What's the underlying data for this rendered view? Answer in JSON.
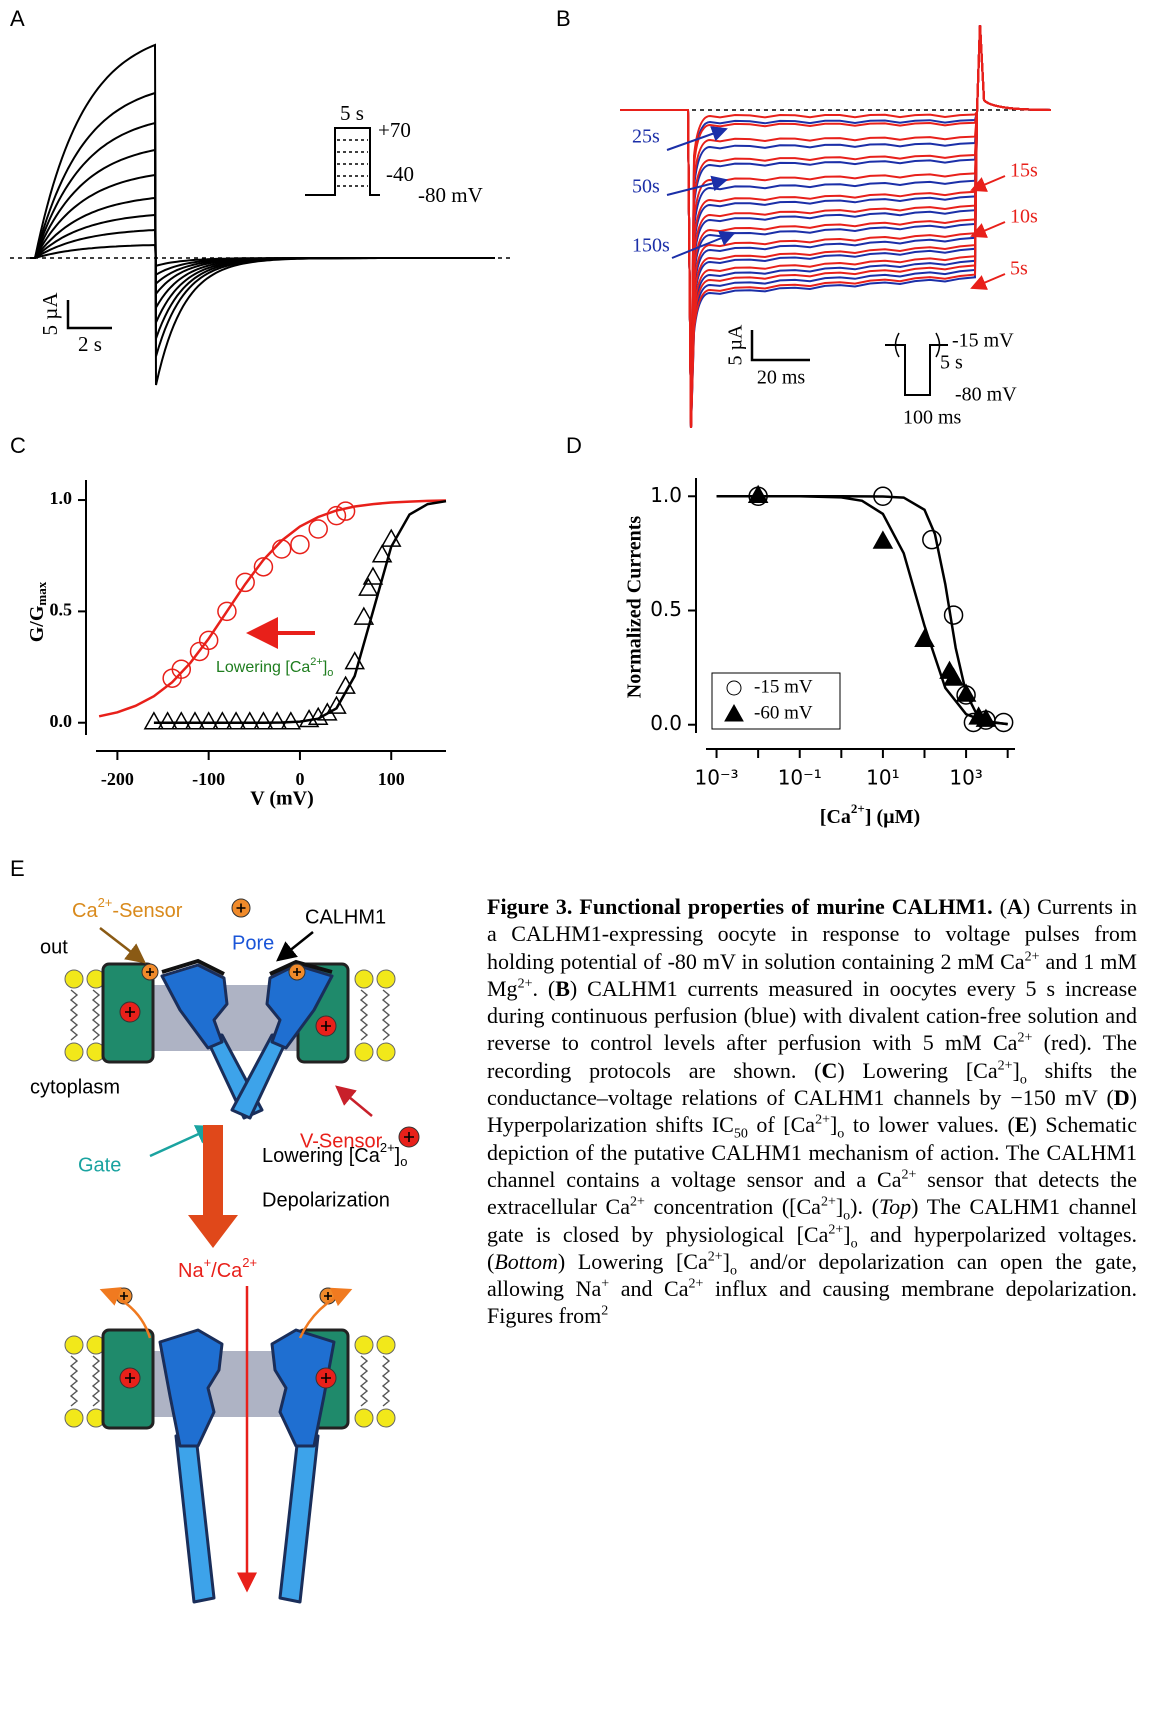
{
  "panel_labels": [
    "A",
    "B",
    "C",
    "D",
    "E"
  ],
  "panel_a": {
    "protocol": {
      "duration": "5 s",
      "top": "+70",
      "bottom": "-40",
      "holding": "-80 mV"
    },
    "scale": {
      "current": "5 µA",
      "time": "2 s"
    }
  },
  "panel_b": {
    "blue_labels": [
      "25s",
      "50s",
      "150s"
    ],
    "red_labels": [
      "15s",
      "10s",
      "5s"
    ],
    "scale": {
      "current": "5 µA",
      "time": "20 ms"
    },
    "protocol": {
      "test": "-15 mV",
      "interval": "5 s",
      "holding": "-80 mV",
      "duration": "100 ms"
    }
  },
  "chart_data": [
    {
      "type": "scatter",
      "x_label": "V (mV)",
      "y_label": "G/G",
      "y_label_sub": "max",
      "xlim": [
        -230,
        160
      ],
      "ylim": [
        -0.1,
        1.09
      ],
      "xticks": [
        -200,
        -100,
        0,
        100
      ],
      "yticks": [
        {
          "value": 0,
          "label": "0.0"
        },
        {
          "value": 0.5,
          "label": "0.5"
        },
        {
          "value": 1,
          "label": "1.0"
        }
      ],
      "series": [
        {
          "color": "#e8201a",
          "marker": "open-circle",
          "x": [
            -140,
            -130,
            -110,
            -100,
            -80,
            -60,
            -40,
            -20,
            0,
            20,
            40,
            50
          ],
          "values": [
            0.2,
            0.24,
            0.32,
            0.37,
            0.5,
            0.63,
            0.7,
            0.78,
            0.8,
            0.87,
            0.93,
            0.95
          ]
        },
        {
          "color": "#000000",
          "marker": "open-triangle",
          "x": [
            -160,
            -145,
            -130,
            -115,
            -100,
            -85,
            -70,
            -55,
            -40,
            -25,
            -10,
            10,
            20,
            30,
            40,
            50,
            60,
            70,
            75,
            80,
            90,
            100
          ],
          "values": [
            0,
            0,
            0,
            0,
            0,
            0,
            0,
            0,
            0,
            0,
            0,
            0.01,
            0.02,
            0.04,
            0.07,
            0.16,
            0.27,
            0.47,
            0.6,
            0.65,
            0.75,
            0.82
          ]
        }
      ],
      "fits": [
        {
          "color": "#e8201a",
          "x": [
            -220,
            -200,
            -180,
            -160,
            -140,
            -120,
            -100,
            -80,
            -60,
            -40,
            -20,
            0,
            20,
            40,
            60,
            80,
            100,
            120,
            140,
            160
          ],
          "values": [
            0.029,
            0.047,
            0.076,
            0.119,
            0.182,
            0.269,
            0.378,
            0.5,
            0.622,
            0.731,
            0.818,
            0.881,
            0.924,
            0.953,
            0.971,
            0.982,
            0.989,
            0.993,
            0.996,
            0.998
          ]
        },
        {
          "color": "#000000",
          "x": [
            -160,
            -140,
            -120,
            -100,
            -80,
            -60,
            -40,
            -20,
            0,
            20,
            40,
            60,
            80,
            100,
            120,
            140,
            160
          ],
          "values": [
            0,
            0,
            0,
            0,
            0,
            0,
            0,
            0.001,
            0.005,
            0.018,
            0.065,
            0.21,
            0.5,
            0.79,
            0.935,
            0.982,
            0.995
          ]
        }
      ],
      "annotation": {
        "text": "Lowering [Ca",
        "sup": "2+",
        "close": "]",
        "sub": "o",
        "color": "#1e7d1e"
      }
    },
    {
      "type": "scatter",
      "log_x": true,
      "x_label": "[Ca",
      "x_label_sup": "2+",
      "x_label_end": "] (µM)",
      "y_label": "Normalized Currents",
      "xlim": [
        0.0004,
        15000
      ],
      "ylim": [
        -0.08,
        1.08
      ],
      "xticks": [
        {
          "value": 0.001,
          "label": "10⁻³"
        },
        {
          "value": 0.1,
          "label": "10⁻¹"
        },
        {
          "value": 10,
          "label": "10¹"
        },
        {
          "value": 1000,
          "label": "10³"
        }
      ],
      "xminor": [
        0.01,
        1,
        100,
        10000
      ],
      "yticks": [
        {
          "value": 0,
          "label": "0.0"
        },
        {
          "value": 0.5,
          "label": "0.5"
        },
        {
          "value": 1,
          "label": "1.0"
        }
      ],
      "legend": "lower left",
      "series": [
        {
          "name": "-15 mV",
          "color": "#000000",
          "marker": "open-circle",
          "x": [
            0.01,
            10,
            150,
            500,
            1000,
            1500,
            3000,
            8000
          ],
          "values": [
            1.0,
            1.0,
            0.81,
            0.48,
            0.13,
            0.01,
            0.02,
            0.01
          ]
        },
        {
          "name": "-60 mV",
          "color": "#000000",
          "marker": "filled-triangle",
          "x": [
            0.01,
            10,
            100,
            400,
            500,
            1000,
            2000,
            3000
          ],
          "values": [
            1.0,
            0.8,
            0.37,
            0.23,
            0.2,
            0.13,
            0.03,
            0.02
          ]
        }
      ],
      "fits": [
        {
          "color": "#000000",
          "x": [
            0.001,
            0.01,
            0.1,
            1,
            10,
            31.6,
            100,
            177.8,
            316.2,
            562.3,
            1000,
            1778,
            3162,
            10000
          ],
          "values": [
            1,
            1,
            1,
            1,
            0.999,
            0.994,
            0.941,
            0.835,
            0.615,
            0.336,
            0.138,
            0.048,
            0.016,
            0.002
          ]
        },
        {
          "color": "#000000",
          "x": [
            0.001,
            0.01,
            0.1,
            1,
            3.162,
            10,
            31.62,
            100,
            316.2,
            1000,
            3162,
            10000
          ],
          "values": [
            1,
            1,
            1,
            0.995,
            0.98,
            0.923,
            0.751,
            0.433,
            0.161,
            0.046,
            0.012,
            0.003
          ]
        }
      ]
    }
  ],
  "panel_e": {
    "ca_sensor": "Ca",
    "ca_sensor_sup": "2+",
    "ca_sensor_end": "-Sensor",
    "pore": "Pore",
    "channel": "CALHM1",
    "out": "out",
    "cytoplasm": "cytoplasm",
    "gate": "Gate",
    "v_sensor": "V-Sensor",
    "lowering": "Lowering [Ca",
    "lowering_sup": "2+",
    "lowering_close": "]",
    "lowering_sub": "o",
    "depolarization": "Depolarization",
    "flux": [
      "Na",
      "+",
      "/Ca",
      "2+"
    ]
  },
  "caption": {
    "parts": [
      "Figure 3. Functional properties of murine CALHM1.",
      " (",
      "A",
      ") Currents in a CALHM1-expressing oocyte in response to voltage pulses from holding potential of -80 mV in solution containing 2 mM Ca",
      "2+",
      " and 1 mM Mg",
      "2+",
      ". (",
      "B",
      ") CALHM1 currents measured in oocytes every 5 s increase during continuous perfusion (blue) with divalent cation-free solution and reverse to control levels after perfusion with 5 mM Ca",
      "2+",
      " (red). The recording protocols are shown. (",
      "C",
      ") Lowering [Ca",
      "2+",
      "]",
      "o",
      " shifts the conductance–voltage relations of CALHM1 channels by −150 mV (",
      "D",
      ") Hyperpolarization shifts IC",
      "50",
      " of [Ca",
      "2+",
      "]",
      "o",
      " to lower values. (",
      "E",
      ") Schematic depiction of the putative CALHM1 mechanism of action. The CALHM1 channel contains a voltage sensor and a Ca",
      "2+",
      " sensor that detects the extracellular Ca",
      "2+",
      " concentration ([Ca",
      "2+",
      "]",
      "o",
      "). (",
      "Top",
      ") The CALHM1 channel gate is closed by physiological [Ca",
      "2+",
      "]",
      "o",
      " and hyperpolarized voltages. (",
      "Bottom",
      ") Lowering [Ca",
      "2+",
      "]",
      "o",
      " and/or depolarization can open the gate, allowing Na",
      "+",
      " and Ca",
      "2+",
      " influx and causing membrane depolarization. Figures from",
      "2"
    ]
  }
}
